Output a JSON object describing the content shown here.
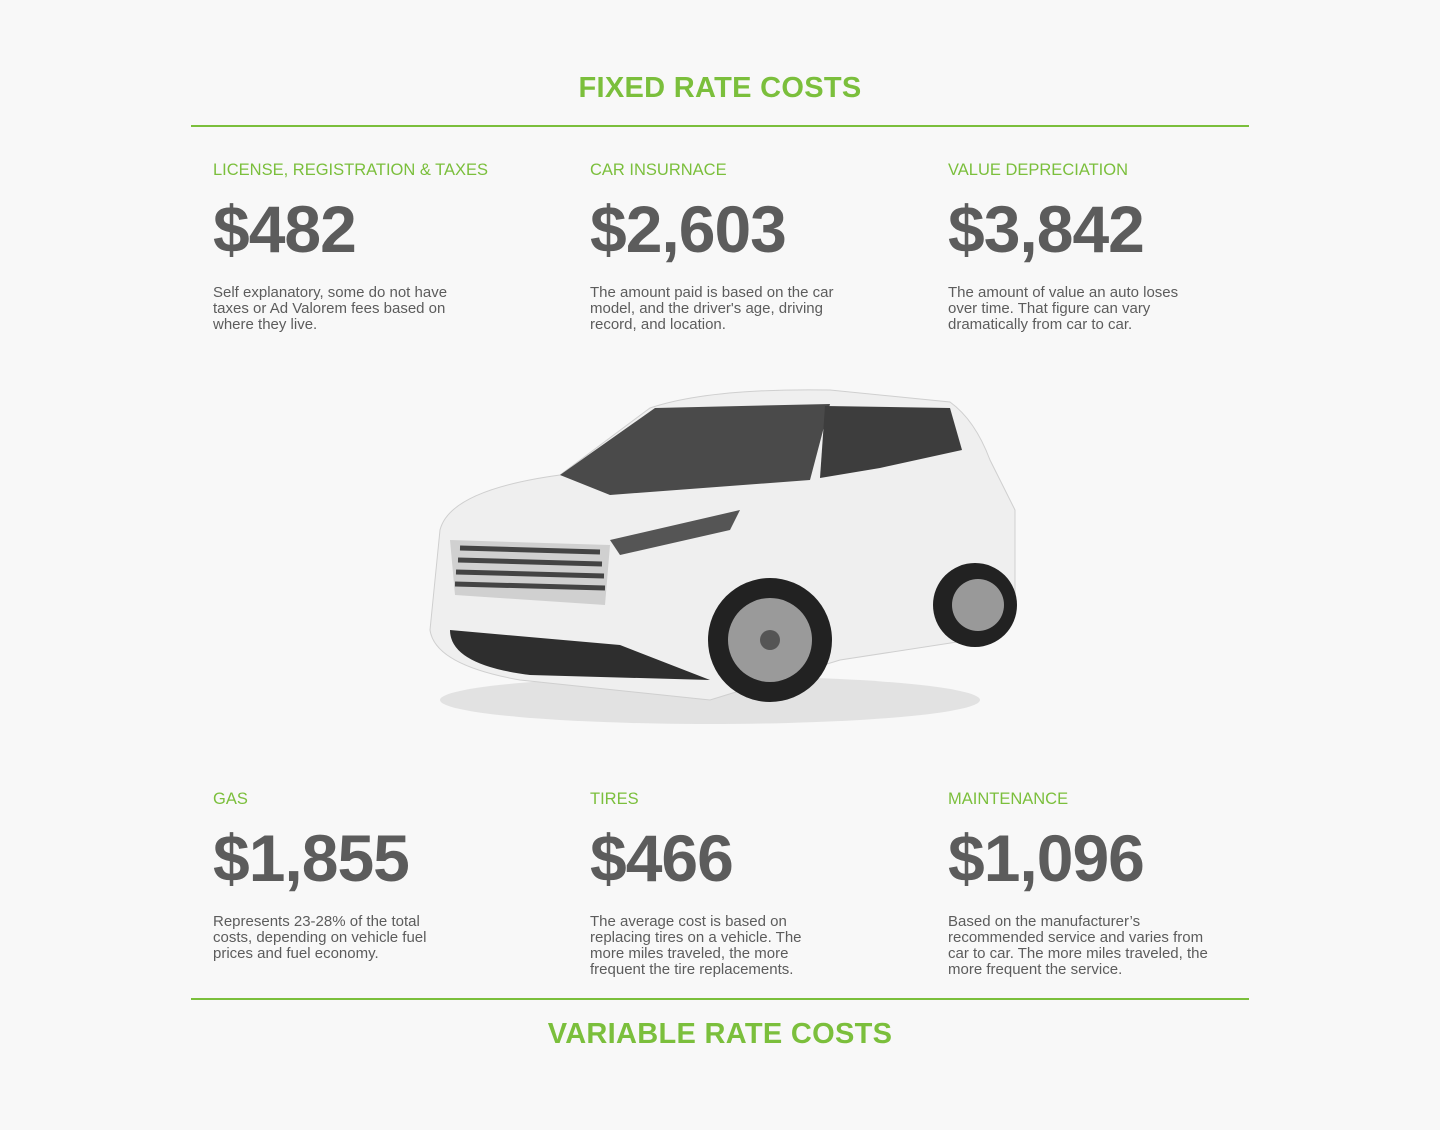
{
  "colors": {
    "accent": "#7bbf3c",
    "text": "#5c5c5c",
    "background": "#f8f8f8"
  },
  "fixed": {
    "title": "FIXED RATE COSTS",
    "items": [
      {
        "label": "LICENSE, REGISTRATION & TAXES",
        "amount": "$482",
        "description": "Self explanatory, some do not have\ntaxes or Ad Valorem fees based on\nwhere they live."
      },
      {
        "label": "CAR INSURNACE",
        "amount": "$2,603",
        "description": "The amount paid is based on the car\nmodel, and the driver's age, driving\nrecord, and location."
      },
      {
        "label": "VALUE DEPRECIATION",
        "amount": "$3,842",
        "description": "The amount of value an auto loses\nover time. That figure can vary\ndramatically from car to car."
      }
    ]
  },
  "variable": {
    "title": "VARIABLE RATE COSTS",
    "items": [
      {
        "label": "GAS",
        "amount": "$1,855",
        "description": "Represents 23-28% of the total\ncosts, depending on vehicle fuel\nprices and fuel economy."
      },
      {
        "label": "TIRES",
        "amount": "$466",
        "description": "The average cost is based on\nreplacing tires on a vehicle. The\nmore miles traveled, the more\nfrequent the tire replacements."
      },
      {
        "label": "MAINTENANCE",
        "amount": "$1,096",
        "description": "Based on the manufacturer’s\nrecommended service and varies from\ncar to car. The more miles traveled, the\nmore frequent the service."
      }
    ]
  },
  "image": {
    "subject": "white-suv"
  }
}
